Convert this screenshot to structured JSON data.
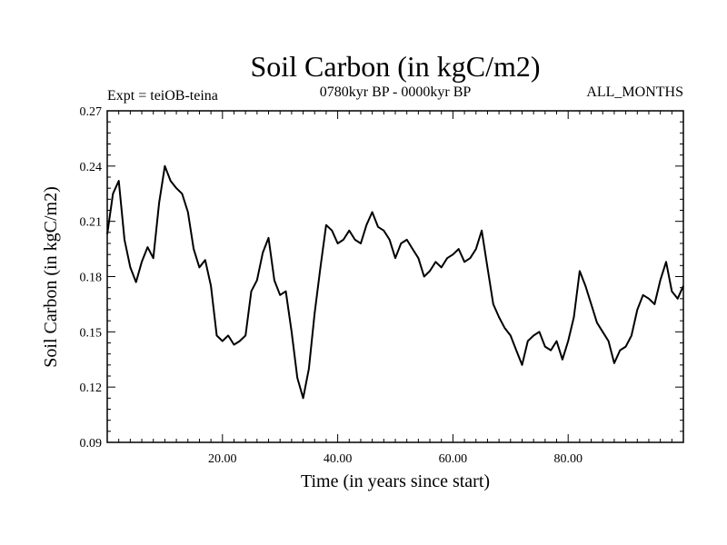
{
  "chart_data": {
    "type": "line",
    "title": "Soil Carbon (in kgC/m2)",
    "subtitle_left": "Expt = teiOB-teina",
    "subtitle_center": "0780kyr BP - 0000kyr BP",
    "subtitle_right": "ALL_MONTHS",
    "xlabel": "Time (in years since start)",
    "ylabel": "Soil Carbon (in kgC/m2)",
    "xlim": [
      0,
      100
    ],
    "ylim": [
      0.09,
      0.27
    ],
    "x_ticks": [
      20,
      40,
      60,
      80
    ],
    "x_tick_labels": [
      "20.00",
      "40.00",
      "60.00",
      "80.00"
    ],
    "y_ticks": [
      0.09,
      0.12,
      0.15,
      0.18,
      0.21,
      0.24,
      0.27
    ],
    "y_tick_labels": [
      "0.09",
      "0.12",
      "0.15",
      "0.18",
      "0.21",
      "0.24",
      "0.27"
    ],
    "grid": false,
    "line_color": "#000000",
    "series": [
      {
        "name": "Soil Carbon",
        "x": [
          0,
          1,
          2,
          3,
          4,
          5,
          6,
          7,
          8,
          9,
          10,
          11,
          12,
          13,
          14,
          15,
          16,
          17,
          18,
          19,
          20,
          21,
          22,
          23,
          24,
          25,
          26,
          27,
          28,
          29,
          30,
          31,
          32,
          33,
          34,
          35,
          36,
          37,
          38,
          39,
          40,
          41,
          42,
          43,
          44,
          45,
          46,
          47,
          48,
          49,
          50,
          51,
          52,
          53,
          54,
          55,
          56,
          57,
          58,
          59,
          60,
          61,
          62,
          63,
          64,
          65,
          66,
          67,
          68,
          69,
          70,
          71,
          72,
          73,
          74,
          75,
          76,
          77,
          78,
          79,
          80,
          81,
          82,
          83,
          84,
          85,
          86,
          87,
          88,
          89,
          90,
          91,
          92,
          93,
          94,
          95,
          96,
          97,
          98,
          99,
          100
        ],
        "values": [
          0.203,
          0.225,
          0.232,
          0.2,
          0.185,
          0.177,
          0.188,
          0.196,
          0.19,
          0.22,
          0.24,
          0.232,
          0.228,
          0.225,
          0.215,
          0.195,
          0.185,
          0.189,
          0.175,
          0.148,
          0.145,
          0.148,
          0.143,
          0.145,
          0.148,
          0.172,
          0.178,
          0.193,
          0.201,
          0.178,
          0.17,
          0.172,
          0.15,
          0.125,
          0.114,
          0.13,
          0.16,
          0.185,
          0.208,
          0.205,
          0.198,
          0.2,
          0.205,
          0.2,
          0.198,
          0.208,
          0.215,
          0.207,
          0.205,
          0.2,
          0.19,
          0.198,
          0.2,
          0.195,
          0.19,
          0.18,
          0.183,
          0.188,
          0.185,
          0.19,
          0.192,
          0.195,
          0.188,
          0.19,
          0.195,
          0.205,
          0.185,
          0.165,
          0.158,
          0.152,
          0.148,
          0.14,
          0.132,
          0.145,
          0.148,
          0.15,
          0.142,
          0.14,
          0.145,
          0.135,
          0.145,
          0.158,
          0.183,
          0.175,
          0.165,
          0.155,
          0.15,
          0.145,
          0.133,
          0.14,
          0.142,
          0.148,
          0.162,
          0.17,
          0.168,
          0.165,
          0.178,
          0.188,
          0.172,
          0.168,
          0.175
        ]
      }
    ]
  }
}
